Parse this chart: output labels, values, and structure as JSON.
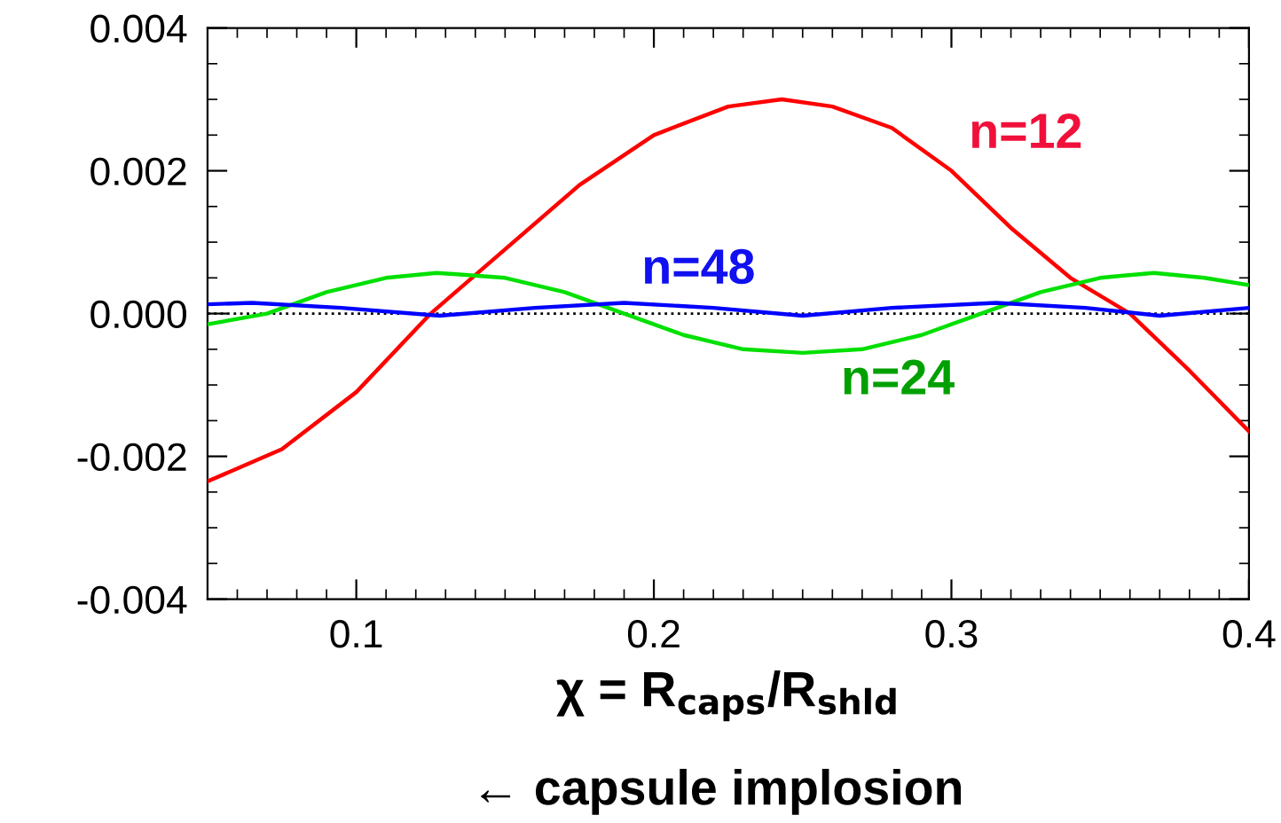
{
  "chart_data": {
    "type": "line",
    "xlabel": "χ = R$_{caps}$/R$_{shld}$",
    "annotations": [
      "← capsule implosion"
    ],
    "xlim": [
      0.05,
      0.4
    ],
    "xticks": [
      0.1,
      0.2,
      0.3,
      0.4
    ],
    "ylim": [
      -0.004,
      0.004
    ],
    "yticks": [
      {
        "value": 0.004,
        "label": "0.004"
      },
      {
        "value": 0.002,
        "label": "0.002"
      },
      {
        "value": 0,
        "label": "0.000"
      },
      {
        "value": -0.002,
        "label": "-0.002"
      },
      {
        "value": -0.004,
        "label": "-0.004"
      }
    ],
    "grid": false,
    "legend": false,
    "marker": "none",
    "line_style": "solid",
    "ref_lines": [
      {
        "axis": "y",
        "value": 0,
        "color": "#000000",
        "line_style": "dotted"
      }
    ],
    "series": [
      {
        "name": "n=12",
        "color": "#ff0000",
        "x": [
          0.05,
          0.075,
          0.1,
          0.125,
          0.15,
          0.175,
          0.2,
          0.225,
          0.243,
          0.26,
          0.28,
          0.3,
          0.32,
          0.34,
          0.36,
          0.38,
          0.4
        ],
        "values": [
          -0.00235,
          -0.0019,
          -0.0011,
          0.0,
          0.0009,
          0.0018,
          0.0025,
          0.0029,
          0.003,
          0.0029,
          0.0026,
          0.002,
          0.0012,
          0.0005,
          0.0,
          -0.0008,
          -0.00165
        ]
      },
      {
        "name": "n=24",
        "color": "#00e000",
        "x": [
          0.05,
          0.07,
          0.09,
          0.11,
          0.127,
          0.15,
          0.17,
          0.19,
          0.21,
          0.23,
          0.25,
          0.27,
          0.29,
          0.31,
          0.33,
          0.35,
          0.368,
          0.385,
          0.4
        ],
        "values": [
          -0.00015,
          0.0,
          0.0003,
          0.0005,
          0.00057,
          0.0005,
          0.0003,
          0.0,
          -0.0003,
          -0.0005,
          -0.00055,
          -0.0005,
          -0.0003,
          0.0,
          0.0003,
          0.0005,
          0.00057,
          0.0005,
          0.0004
        ]
      },
      {
        "name": "n=48",
        "color": "#0000ff",
        "x": [
          0.05,
          0.065,
          0.095,
          0.128,
          0.16,
          0.19,
          0.22,
          0.25,
          0.28,
          0.315,
          0.345,
          0.37,
          0.4
        ],
        "values": [
          0.00013,
          0.00015,
          8e-05,
          -3e-05,
          8e-05,
          0.00015,
          8e-05,
          -3e-05,
          8e-05,
          0.00015,
          8e-05,
          -3e-05,
          8e-05
        ]
      }
    ]
  }
}
